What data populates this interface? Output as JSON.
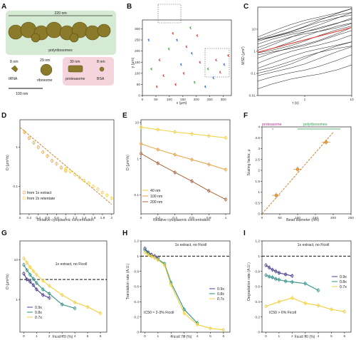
{
  "panels": {
    "A": {
      "letter": "A",
      "top_size": "220 nm",
      "top_name": "polyribosomes",
      "items": [
        {
          "size": "8 nm",
          "name": "tRNA"
        },
        {
          "size": "29 nm",
          "name": "ribosome"
        },
        {
          "size": "30 nm",
          "name": "proteasome"
        },
        {
          "size": "8 nm",
          "name": "BSA"
        }
      ],
      "scalebar": "100 nm",
      "colors": {
        "green_box": "#d5ead3",
        "pink_box": "#f6d4de",
        "particle": "#8a7a2a"
      }
    },
    "B": {
      "letter": "B",
      "xlabel": "x (μm)",
      "ylabel": "y (μm)"
    },
    "C": {
      "letter": "C",
      "xlabel": "τ (s)",
      "ylabel": "MSD (μm²)"
    },
    "D": {
      "letter": "D",
      "xlabel": "Relative cytoplasmic concentration",
      "ylabel": "D (μm²/s)",
      "legend": [
        "from 1x extract",
        "from 2x retentate"
      ]
    },
    "E": {
      "letter": "E",
      "xlabel": "Relative cytoplasmic concentration",
      "ylabel": "D (μm²/s)",
      "legend": [
        "40 nm",
        "100 nm",
        "200 nm"
      ]
    },
    "F": {
      "letter": "F",
      "xlabel": "Bead diameter (nm)",
      "ylabel": "Scaling factor, μ",
      "ann_proteasome": "proteasome",
      "ann_polyribosomes": "polyribosomes"
    },
    "G": {
      "letter": "G",
      "xlabel": "Ficoll 70 (%)",
      "ylabel": "D (μm²/s)",
      "ref_label": "1x extract, no Ficoll",
      "legend": [
        "0.9x",
        "0.8x",
        "0.7x"
      ]
    },
    "H": {
      "letter": "H",
      "xlabel": "Ficoll 70 (%)",
      "ylabel": "Translation rate (A.U.)",
      "ref_label": "1x extract, no Ficoll",
      "legend": [
        "0.9x",
        "0.8x",
        "0.7x"
      ],
      "note": "IC50 ≈ 2-3% Ficoll"
    },
    "I": {
      "letter": "I",
      "xlabel": "Ficoll 70 (%)",
      "ylabel": "Degradation rate (A.U.)",
      "ref_label": "1x extract, no Ficoll",
      "legend": [
        "0.9x",
        "0.8x",
        "0.7x"
      ],
      "note": "IC50 > 6% Ficoll"
    }
  },
  "colors": {
    "orange": "#e8a040",
    "orange_dark": "#c87a20",
    "yellow": "#f2d03a",
    "brown": "#a8663a",
    "purple": "#4b3f8f",
    "teal": "#2f8f86",
    "red_fit": "#e0463c"
  },
  "chart_data": [
    {
      "id": "B",
      "type": "scatter",
      "xlabel": "x (μm)",
      "ylabel": "y (μm)",
      "xlim": [
        0,
        330
      ],
      "ylim": [
        0,
        340
      ],
      "xticks": [
        0,
        50,
        100,
        150,
        200,
        250,
        300
      ],
      "yticks": [
        0,
        50,
        100,
        150,
        200,
        250,
        300
      ],
      "tracks": [
        {
          "x": 110,
          "y": 280,
          "c": "#d33"
        },
        {
          "x": 125,
          "y": 250,
          "c": "#36c"
        },
        {
          "x": 95,
          "y": 210,
          "c": "#3a3"
        },
        {
          "x": 160,
          "y": 220,
          "c": "#d33"
        },
        {
          "x": 180,
          "y": 190,
          "c": "#36c"
        },
        {
          "x": 60,
          "y": 160,
          "c": "#d33"
        },
        {
          "x": 30,
          "y": 120,
          "c": "#3a3"
        },
        {
          "x": 75,
          "y": 90,
          "c": "#d33"
        },
        {
          "x": 140,
          "y": 140,
          "c": "#36c"
        },
        {
          "x": 210,
          "y": 150,
          "c": "#d33"
        },
        {
          "x": 240,
          "y": 120,
          "c": "#3a3"
        },
        {
          "x": 270,
          "y": 160,
          "c": "#d33"
        },
        {
          "x": 300,
          "y": 140,
          "c": "#36c"
        },
        {
          "x": 315,
          "y": 180,
          "c": "#d33"
        },
        {
          "x": 285,
          "y": 105,
          "c": "#d33"
        },
        {
          "x": 190,
          "y": 60,
          "c": "#3a3"
        },
        {
          "x": 120,
          "y": 50,
          "c": "#d33"
        },
        {
          "x": 230,
          "y": 40,
          "c": "#36c"
        },
        {
          "x": 50,
          "y": 40,
          "c": "#d33"
        },
        {
          "x": 260,
          "y": 80,
          "c": "#36c"
        },
        {
          "x": 150,
          "y": 100,
          "c": "#d33"
        },
        {
          "x": 200,
          "y": 270,
          "c": "#d33"
        },
        {
          "x": 175,
          "y": 305,
          "c": "#3a3"
        },
        {
          "x": 20,
          "y": 250,
          "c": "#36c"
        }
      ]
    },
    {
      "id": "C",
      "type": "line",
      "xlabel": "τ (s)",
      "ylabel": "MSD (μm²)",
      "xscale": "log",
      "yscale": "log",
      "xlim": [
        0.1,
        10
      ],
      "ylim": [
        0.01,
        100
      ],
      "xticks": [
        1,
        10
      ],
      "yticks": [
        0.01,
        0.1,
        1,
        10
      ],
      "mean_fit": {
        "x": [
          0.1,
          10
        ],
        "y": [
          0.9,
          12
        ]
      }
    },
    {
      "id": "D",
      "type": "scatter",
      "xlabel": "Relative cytoplasmic concentration",
      "ylabel": "D (μm²/s)",
      "yscale": "log",
      "xlim": [
        0,
        2.05
      ],
      "ylim": [
        0.02,
        5
      ],
      "xticks": [
        0,
        0.2,
        0.4,
        0.6,
        0.8,
        1.0,
        1.2,
        1.4,
        1.6,
        1.8,
        2.0
      ],
      "yticks": [
        0.1,
        1
      ],
      "series": [
        {
          "name": "from 1x extract",
          "x": [
            0.1,
            0.2,
            0.3,
            0.4,
            0.5,
            0.6,
            0.7,
            0.8,
            0.9,
            1.0
          ],
          "y": [
            2.4,
            1.7,
            1.3,
            1.0,
            0.75,
            0.6,
            0.45,
            0.38,
            0.3,
            0.25
          ]
        },
        {
          "name": "from 2x retentate",
          "x": [
            1.0,
            1.1,
            1.2,
            1.3,
            1.4,
            1.5,
            1.6,
            1.7,
            1.8,
            1.9,
            2.0
          ],
          "y": [
            0.28,
            0.24,
            0.2,
            0.17,
            0.14,
            0.12,
            0.1,
            0.085,
            0.07,
            0.06,
            0.05
          ]
        }
      ],
      "fit": {
        "x": [
          0,
          2
        ],
        "y": [
          3.2,
          0.035
        ]
      }
    },
    {
      "id": "E",
      "type": "line",
      "xlabel": "Relative cytoplasmic concentration",
      "ylabel": "D (μm²/s)",
      "yscale": "log",
      "xlim": [
        0,
        1.05
      ],
      "ylim": [
        0.03,
        12
      ],
      "xticks": [
        0,
        0.2,
        0.4,
        0.6,
        0.8,
        1.0
      ],
      "yticks": [
        0.1,
        1,
        10
      ],
      "series": [
        {
          "name": "40 nm",
          "x": [
            0,
            0.2,
            0.4,
            0.6,
            0.8,
            1.0
          ],
          "y": [
            7.5,
            6.4,
            5.5,
            4.9,
            4.3,
            3.8
          ]
        },
        {
          "name": "100 nm",
          "x": [
            0,
            0.2,
            0.4,
            0.6,
            0.8,
            1.0
          ],
          "y": [
            2.6,
            1.8,
            1.3,
            0.95,
            0.7,
            0.5
          ]
        },
        {
          "name": "200 nm",
          "x": [
            0,
            0.2,
            0.4,
            0.6,
            0.8,
            1.0
          ],
          "y": [
            1.4,
            0.75,
            0.42,
            0.24,
            0.13,
            0.075
          ]
        }
      ]
    },
    {
      "id": "F",
      "type": "scatter",
      "xlabel": "Bead diameter (nm)",
      "ylabel": "Scaling factor, μ",
      "xlim": [
        0,
        250
      ],
      "ylim": [
        0,
        4
      ],
      "xticks": [
        0,
        50,
        100,
        150,
        200,
        250
      ],
      "yticks": [
        0,
        0.5,
        1.0,
        1.5,
        2.0,
        2.5,
        3.0,
        3.5,
        4.0
      ],
      "points": {
        "x": [
          40,
          100,
          180
        ],
        "y": [
          0.85,
          2.05,
          3.3
        ]
      },
      "fit": {
        "x": [
          0,
          200
        ],
        "y": [
          0,
          3.75
        ]
      },
      "proteasome_range": [
        28,
        32
      ],
      "polyribosome_range": [
        100,
        220
      ]
    },
    {
      "id": "G",
      "type": "line",
      "xlabel": "Ficoll 70 (%)",
      "ylabel": "D (μm²/s)",
      "yscale": "log",
      "xlim": [
        -0.3,
        6.5
      ],
      "ylim": [
        0.15,
        30
      ],
      "xticks": [
        0,
        1,
        2,
        3,
        4,
        5,
        6
      ],
      "yticks": [
        1,
        10
      ],
      "reference": 3.2,
      "series": [
        {
          "name": "0.9x",
          "x": [
            0,
            0.25,
            0.5,
            0.75,
            1,
            1.5,
            2
          ],
          "y": [
            4.5,
            3.2,
            2.8,
            2.3,
            1.8,
            1.3,
            1.1
          ]
        },
        {
          "name": "0.8x",
          "x": [
            0,
            0.25,
            0.5,
            0.75,
            1,
            1.5,
            2,
            3,
            4
          ],
          "y": [
            7.5,
            5.5,
            4.2,
            3.3,
            2.6,
            1.8,
            1.4,
            0.75,
            0.6
          ]
        },
        {
          "name": "0.7x",
          "x": [
            0,
            0.25,
            0.5,
            0.75,
            1,
            1.5,
            2,
            3,
            4,
            5,
            6
          ],
          "y": [
            11,
            8.5,
            6.5,
            5.2,
            4.2,
            3.0,
            2.2,
            1.3,
            0.85,
            0.65,
            0.45
          ]
        }
      ]
    },
    {
      "id": "H",
      "type": "line",
      "xlabel": "Ficoll 70 (%)",
      "ylabel": "Translation rate (A.U.)",
      "xlim": [
        -0.3,
        6.5
      ],
      "ylim": [
        0,
        1.2
      ],
      "xticks": [
        0,
        1,
        2,
        3,
        4,
        5,
        6
      ],
      "yticks": [
        0,
        0.2,
        0.4,
        0.6,
        0.8,
        1.0,
        1.2
      ],
      "reference": 1.0,
      "series": [
        {
          "name": "0.9x",
          "x": [
            0,
            0.25,
            0.5,
            0.75,
            1
          ],
          "y": [
            1.1,
            1.05,
            1.02,
            1.0,
            0.98
          ]
        },
        {
          "name": "0.8x",
          "x": [
            0,
            0.25,
            0.5,
            0.75,
            1,
            1.5,
            2,
            3,
            4
          ],
          "y": [
            1.08,
            1.04,
            1.0,
            0.98,
            0.96,
            0.9,
            0.65,
            0.3,
            0.12
          ]
        },
        {
          "name": "0.7x",
          "x": [
            0,
            0.25,
            0.5,
            0.75,
            1,
            1.5,
            2,
            3,
            4,
            5,
            6
          ],
          "y": [
            1.05,
            1.02,
            1.0,
            0.98,
            0.95,
            0.88,
            0.62,
            0.25,
            0.1,
            0.05,
            0.03
          ]
        }
      ]
    },
    {
      "id": "I",
      "type": "line",
      "xlabel": "Ficoll 70 (%)",
      "ylabel": "Degradation rate (A.U.)",
      "xlim": [
        -0.3,
        6.5
      ],
      "ylim": [
        0,
        1.2
      ],
      "xticks": [
        0,
        1,
        2,
        3,
        4,
        5,
        6
      ],
      "yticks": [
        0,
        0.2,
        0.4,
        0.6,
        0.8,
        1.0,
        1.2
      ],
      "reference": 1.0,
      "series": [
        {
          "name": "0.9x",
          "x": [
            0,
            0.25,
            0.5,
            0.75,
            1,
            1.5,
            2
          ],
          "y": [
            0.88,
            0.85,
            0.82,
            0.8,
            0.78,
            0.76,
            0.74
          ]
        },
        {
          "name": "0.8x",
          "x": [
            0,
            0.25,
            0.5,
            0.75,
            1,
            1.5,
            2,
            3,
            4
          ],
          "y": [
            0.75,
            0.73,
            0.72,
            0.7,
            0.69,
            0.67,
            0.66,
            0.64,
            0.55
          ]
        },
        {
          "name": "0.7x",
          "x": [
            0,
            1,
            2,
            3,
            4,
            5,
            6
          ],
          "y": [
            0.34,
            0.4,
            0.45,
            0.38,
            0.35,
            0.3,
            0.27
          ]
        }
      ]
    }
  ]
}
